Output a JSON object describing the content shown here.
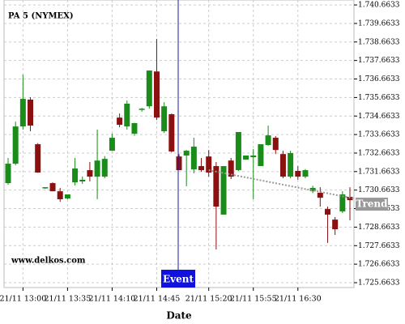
{
  "chart_data": {
    "type": "candlestick",
    "title": "PA 5 (NYMEX)",
    "watermark": "www.delkos.com",
    "x_label": "Date",
    "up_color": "#1a8c1a",
    "down_color": "#8b1010",
    "grid": true,
    "categories": [
      null,
      null,
      "21/11 13:00",
      null,
      null,
      null,
      null,
      null,
      "21/11 13:35",
      null,
      null,
      null,
      null,
      null,
      "21/11 14:10",
      null,
      null,
      null,
      null,
      null,
      "21/11 14:45",
      null,
      null,
      null,
      null,
      null,
      null,
      "21/11 15:20",
      null,
      null,
      null,
      null,
      null,
      "21/11 15:55",
      null,
      null,
      null,
      null,
      null,
      "21/11 16:30",
      null,
      null,
      null,
      null,
      null,
      null,
      null
    ],
    "open": [
      1731.04,
      1732.09,
      1734.1,
      1735.55,
      1733.14,
      1730.78,
      1731.04,
      1730.6,
      1730.21,
      1731.08,
      1731.13,
      1731.74,
      1731.39,
      1731.39,
      1732.79,
      1734.58,
      1734.1,
      1733.71,
      1735.0,
      1735.19,
      1737.07,
      1733.84,
      1734.76,
      1732.48,
      1732.53,
      1731.78,
      1731.96,
      1732.48,
      1731.96,
      1729.34,
      1732.26,
      1731.74,
      1732.31,
      1732.44,
      1731.96,
      1733.1,
      1733.49,
      1732.61,
      1731.39,
      1731.7,
      1731.39,
      1730.6,
      1730.52,
      1729.64,
      1729.07,
      1729.51,
      1730.3
    ],
    "high": [
      1732.4,
      1734.36,
      1736.9,
      1735.68,
      1733.2,
      1730.82,
      1731.08,
      1730.78,
      1730.43,
      1732.4,
      1731.4,
      1732.18,
      1733.93,
      1732.5,
      1733.71,
      1734.8,
      1735.5,
      1734.3,
      1735.1,
      1737.12,
      1738.82,
      1735.41,
      1734.8,
      1732.6,
      1732.83,
      1733.49,
      1732.4,
      1732.83,
      1732.18,
      1731.96,
      1732.4,
      1733.8,
      1732.5,
      1732.88,
      1733.14,
      1734.15,
      1733.58,
      1732.79,
      1732.79,
      1731.96,
      1731.8,
      1730.9,
      1730.82,
      1729.77,
      1729.21,
      1730.6,
      1730.82
    ],
    "low": [
      1730.95,
      1732.0,
      1733.93,
      1733.84,
      1731.6,
      1730.73,
      1730.6,
      1730.03,
      1730.17,
      1730.91,
      1731.0,
      1731.13,
      1730.17,
      1731.3,
      1732.79,
      1734.06,
      1733.93,
      1733.6,
      1734.9,
      1735.06,
      1734.45,
      1733.75,
      1732.7,
      1731.74,
      1730.87,
      1731.57,
      1731.65,
      1731.39,
      1727.46,
      1729.34,
      1731.26,
      1731.7,
      1732.3,
      1730.17,
      1731.96,
      1733.05,
      1732.61,
      1731.3,
      1731.3,
      1731.22,
      1731.3,
      1730.5,
      1729.77,
      1727.81,
      1728.24,
      1729.42,
      1729.03
    ],
    "close": [
      1732.09,
      1734.1,
      1735.59,
      1734.15,
      1731.61,
      1730.82,
      1730.6,
      1730.17,
      1730.43,
      1731.83,
      1731.22,
      1731.39,
      1732.26,
      1732.35,
      1733.49,
      1734.19,
      1735.33,
      1734.28,
      1735.06,
      1737.12,
      1734.58,
      1735.19,
      1732.75,
      1731.74,
      1732.79,
      1733.01,
      1731.74,
      1731.61,
      1729.77,
      1731.96,
      1731.39,
      1733.8,
      1732.53,
      1732.53,
      1733.14,
      1733.62,
      1732.83,
      1731.39,
      1732.66,
      1731.39,
      1731.74,
      1730.78,
      1730.25,
      1729.34,
      1728.55,
      1730.43,
      1730.12
    ],
    "ylim": [
      1725.4,
      1740.93
    ],
    "yticks": [
      {
        "value": 1740.6633,
        "label": "1.740.6633"
      },
      {
        "value": 1739.6633,
        "label": "1.739.6633"
      },
      {
        "value": 1738.6633,
        "label": "1.738.6633"
      },
      {
        "value": 1737.6633,
        "label": "1.737.6633"
      },
      {
        "value": 1736.6633,
        "label": "1.736.6633"
      },
      {
        "value": 1735.6633,
        "label": "1.735.6633"
      },
      {
        "value": 1734.6633,
        "label": "1.734.6633"
      },
      {
        "value": 1733.6633,
        "label": "1.733.6633"
      },
      {
        "value": 1732.6633,
        "label": "1.732.6633"
      },
      {
        "value": 1731.6633,
        "label": "1.731.6633"
      },
      {
        "value": 1730.6633,
        "label": "1.730.6633"
      },
      {
        "value": 1729.6633,
        "label": "1.729.6633"
      },
      {
        "value": 1728.6633,
        "label": "1.728.6633"
      },
      {
        "value": 1727.6633,
        "label": "1.727.6633"
      },
      {
        "value": 1726.6633,
        "label": "1.726.6633"
      },
      {
        "value": 1725.6633,
        "label": "1.725.6633"
      }
    ],
    "event": {
      "label": "Event",
      "index": 23
    },
    "trend": {
      "label": "Trend",
      "x": [
        27,
        46
      ],
      "values": [
        1731.74,
        1730.21
      ]
    }
  }
}
